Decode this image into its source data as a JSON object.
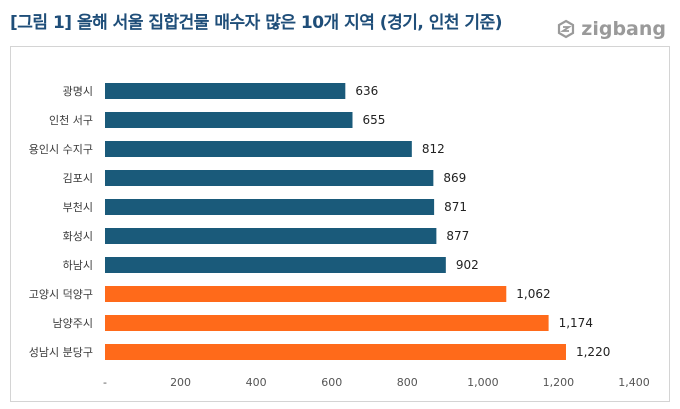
{
  "header": {
    "title": "[그림 1] 올해 서울 집합건물 매수자 많은 10개 지역 (경기, 인천 기준)",
    "brand": "zigbang",
    "brand_icon": "zigbang-logo-icon"
  },
  "colors": {
    "default_bar": "#1a5a7a",
    "highlight_bar": "#ff6a1a",
    "title": "#1f4e79"
  },
  "chart_data": {
    "type": "bar",
    "orientation": "horizontal",
    "categories": [
      "광명시",
      "인천 서구",
      "용인시 수지구",
      "김포시",
      "부천시",
      "화성시",
      "하남시",
      "고양시 덕양구",
      "남양주시",
      "성남시 분당구"
    ],
    "values": [
      636,
      655,
      812,
      869,
      871,
      877,
      902,
      1062,
      1174,
      1220
    ],
    "value_labels": [
      "636",
      "655",
      "812",
      "869",
      "871",
      "877",
      "902",
      "1,062",
      "1,174",
      "1,220"
    ],
    "highlight": [
      false,
      false,
      false,
      false,
      false,
      false,
      false,
      true,
      true,
      true
    ],
    "xlim": [
      0,
      1400
    ],
    "xticks": [
      0,
      200,
      400,
      600,
      800,
      1000,
      1200,
      1400
    ],
    "xtick_labels": [
      "-",
      "200",
      "400",
      "600",
      "800",
      "1,000",
      "1,200",
      "1,400"
    ],
    "grid": false,
    "legend": "none"
  }
}
